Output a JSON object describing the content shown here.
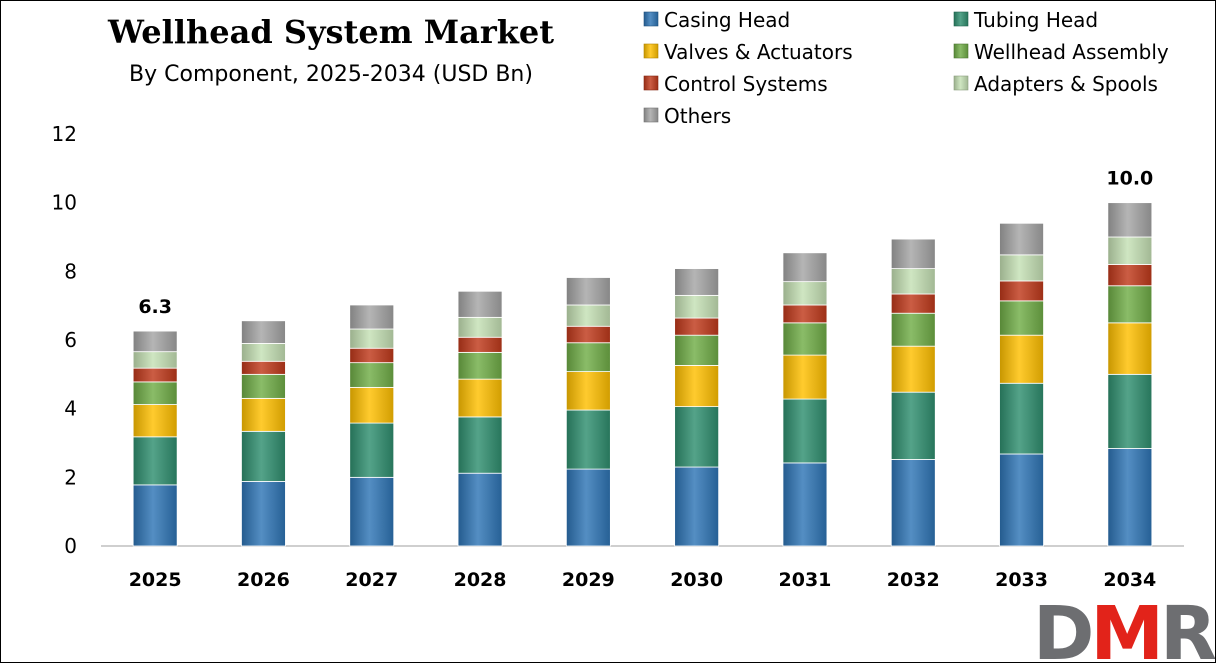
{
  "chart_data": {
    "type": "bar",
    "stacked": true,
    "title": "Wellhead System Market",
    "subtitle": "By Component, 2025-2034 (USD Bn)",
    "categories": [
      "2025",
      "2026",
      "2027",
      "2028",
      "2029",
      "2030",
      "2031",
      "2032",
      "2033",
      "2034"
    ],
    "series": [
      {
        "name": "Casing Head",
        "color": "#2E75B6",
        "values": [
          1.78,
          1.88,
          2.0,
          2.12,
          2.24,
          2.3,
          2.42,
          2.52,
          2.68,
          2.84
        ]
      },
      {
        "name": "Tubing Head",
        "color": "#2F8F6F",
        "values": [
          1.4,
          1.46,
          1.58,
          1.64,
          1.72,
          1.76,
          1.86,
          1.96,
          2.06,
          2.16
        ]
      },
      {
        "name": "Valves & Actuators",
        "color": "#FFC000",
        "values": [
          0.94,
          0.96,
          1.04,
          1.1,
          1.12,
          1.2,
          1.28,
          1.34,
          1.4,
          1.5
        ]
      },
      {
        "name": "Wellhead Assembly",
        "color": "#70AD47",
        "values": [
          0.66,
          0.7,
          0.72,
          0.78,
          0.84,
          0.88,
          0.94,
          0.96,
          1.0,
          1.08
        ]
      },
      {
        "name": "Control Systems",
        "color": "#C0391B",
        "values": [
          0.4,
          0.38,
          0.42,
          0.44,
          0.48,
          0.5,
          0.52,
          0.56,
          0.58,
          0.62
        ]
      },
      {
        "name": "Adapters & Spools",
        "color": "#C5E0B4",
        "values": [
          0.48,
          0.52,
          0.56,
          0.58,
          0.62,
          0.66,
          0.68,
          0.74,
          0.76,
          0.8
        ]
      },
      {
        "name": "Others",
        "color": "#A5A5A5",
        "values": [
          0.6,
          0.66,
          0.7,
          0.76,
          0.8,
          0.78,
          0.84,
          0.86,
          0.92,
          1.0
        ]
      }
    ],
    "data_labels": [
      {
        "category": "2025",
        "label": "6.3"
      },
      {
        "category": "2034",
        "label": "10.0"
      }
    ],
    "yticks": [
      "0",
      "2",
      "4",
      "6",
      "8",
      "10",
      "12"
    ],
    "ylim": [
      0,
      12
    ],
    "xlabel": "",
    "ylabel": "",
    "legend_position": "top-right",
    "grid": false
  },
  "logo": {
    "text": "DMR",
    "colors": [
      "#6D6E71",
      "#E2231A"
    ]
  }
}
